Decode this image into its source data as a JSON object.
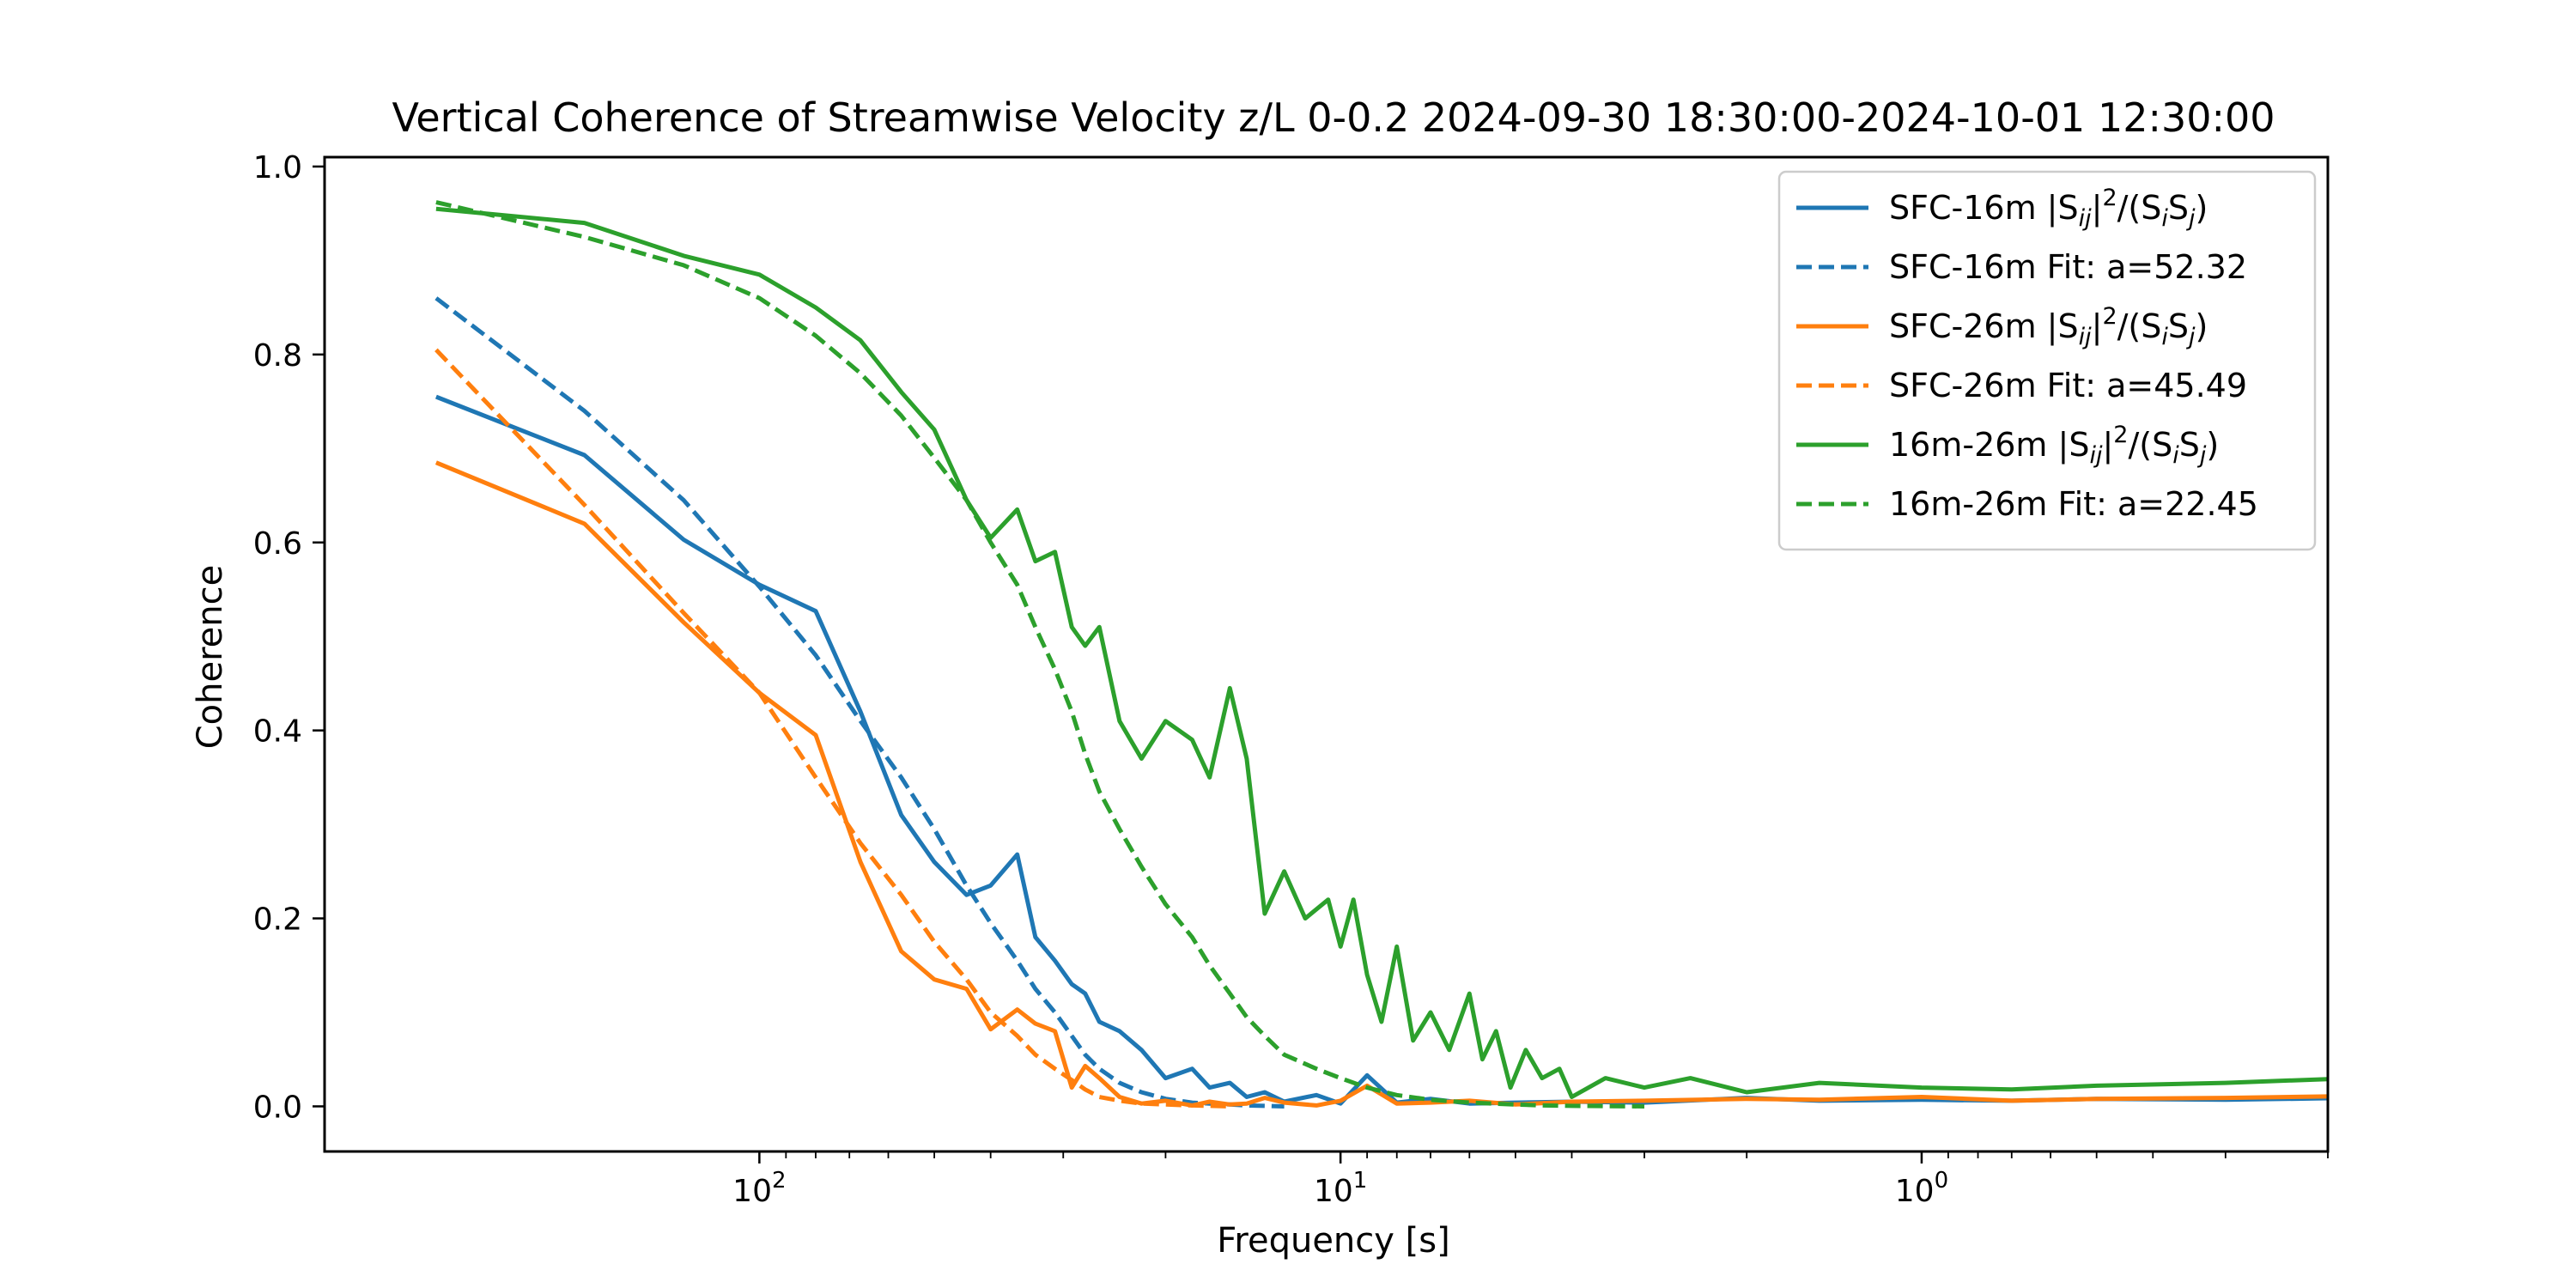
{
  "chart_data": {
    "type": "line",
    "title": "Vertical Coherence of Streamwise Velocity z/L 0-0.2 2024-09-30 18:30:00-2024-10-01 12:30:00",
    "xlabel": "Frequency [s]",
    "ylabel": "Coherence",
    "x_scale": "log",
    "x_reversed": true,
    "xlim": [
      560,
      0.2
    ],
    "ylim": [
      -0.048,
      1.01
    ],
    "x_ticks": [
      {
        "value": 100,
        "label": "10",
        "sup": "2"
      },
      {
        "value": 10,
        "label": "10",
        "sup": "1"
      },
      {
        "value": 1,
        "label": "10",
        "sup": "0"
      }
    ],
    "y_ticks": [
      {
        "value": 0.0,
        "label": "0.0"
      },
      {
        "value": 0.2,
        "label": "0.2"
      },
      {
        "value": 0.4,
        "label": "0.4"
      },
      {
        "value": 0.6,
        "label": "0.6"
      },
      {
        "value": 0.8,
        "label": "0.8"
      },
      {
        "value": 1.0,
        "label": "1.0"
      }
    ],
    "legend_position": "top-right",
    "series": [
      {
        "name": "SFC-16m |Sij|2/(SiSj)",
        "legend": {
          "pre": "SFC-16m |S",
          "sub1": "ij",
          "mid1": "|",
          "sup": "2",
          "mid2": "/(S",
          "sub2": "i",
          "mid3": "S",
          "sub3": "j",
          "post": ")"
        },
        "color": "#1f77b4",
        "style": "solid",
        "x": [
          360,
          200,
          135,
          100,
          80,
          67,
          57,
          50,
          44,
          40,
          36,
          33.5,
          31,
          29,
          27.5,
          26,
          24,
          22,
          20,
          18,
          16.8,
          15.5,
          14.5,
          13.5,
          12.5,
          11,
          10,
          9,
          8,
          7,
          6,
          5,
          4,
          3,
          2,
          1.5,
          1,
          0.7,
          0.5,
          0.3,
          0.18
        ],
        "y": [
          0.755,
          0.693,
          0.603,
          0.555,
          0.527,
          0.42,
          0.31,
          0.26,
          0.225,
          0.235,
          0.268,
          0.18,
          0.155,
          0.13,
          0.12,
          0.09,
          0.08,
          0.06,
          0.03,
          0.04,
          0.02,
          0.025,
          0.01,
          0.015,
          0.005,
          0.012,
          0.003,
          0.033,
          0.004,
          0.008,
          0.003,
          0.004,
          0.005,
          0.004,
          0.009,
          0.006,
          0.007,
          0.006,
          0.008,
          0.007,
          0.009
        ]
      },
      {
        "name": "SFC-16m Fit: a=52.32",
        "color": "#1f77b4",
        "style": "dashed",
        "fit_a": 52.32,
        "x": [
          360,
          200,
          135,
          100,
          80,
          67,
          57,
          50,
          44,
          40,
          36,
          33.5,
          31,
          29,
          27.5,
          26,
          24,
          22,
          20,
          18,
          16.8,
          15.5,
          14.5,
          13.5,
          12.5
        ],
        "y": [
          0.86,
          0.74,
          0.645,
          0.553,
          0.48,
          0.41,
          0.35,
          0.295,
          0.235,
          0.195,
          0.155,
          0.125,
          0.1,
          0.075,
          0.055,
          0.04,
          0.025,
          0.015,
          0.008,
          0.004,
          0.003,
          0.002,
          0.001,
          0.0005,
          0.0
        ]
      },
      {
        "name": "SFC-26m |Sij|2/(SiSj)",
        "legend": {
          "pre": "SFC-26m |S",
          "sub1": "ij",
          "mid1": "|",
          "sup": "2",
          "mid2": "/(S",
          "sub2": "i",
          "mid3": "S",
          "sub3": "j",
          "post": ")"
        },
        "color": "#ff7f0e",
        "style": "solid",
        "x": [
          360,
          200,
          135,
          100,
          80,
          67,
          57,
          50,
          44,
          40,
          36,
          33.5,
          31,
          29,
          27.5,
          26,
          24,
          22,
          20,
          18,
          16.8,
          15.5,
          14.5,
          13.5,
          12.5,
          11,
          10,
          9,
          8,
          7,
          6,
          5,
          4,
          3,
          2,
          1.5,
          1,
          0.7,
          0.5,
          0.3,
          0.18
        ],
        "y": [
          0.685,
          0.62,
          0.515,
          0.44,
          0.395,
          0.26,
          0.165,
          0.135,
          0.125,
          0.082,
          0.103,
          0.088,
          0.08,
          0.02,
          0.043,
          0.03,
          0.01,
          0.003,
          0.006,
          0.001,
          0.005,
          0.002,
          0.003,
          0.009,
          0.004,
          0.001,
          0.006,
          0.022,
          0.003,
          0.004,
          0.006,
          0.002,
          0.005,
          0.006,
          0.008,
          0.007,
          0.01,
          0.006,
          0.008,
          0.009,
          0.011
        ]
      },
      {
        "name": "SFC-26m Fit: a=45.49",
        "color": "#ff7f0e",
        "style": "dashed",
        "fit_a": 45.49,
        "x": [
          360,
          200,
          135,
          100,
          80,
          67,
          57,
          50,
          44,
          40,
          36,
          33.5,
          31,
          29,
          27.5,
          26,
          24,
          22,
          20,
          18,
          16.8,
          15.5
        ],
        "y": [
          0.805,
          0.64,
          0.525,
          0.44,
          0.35,
          0.28,
          0.225,
          0.175,
          0.135,
          0.1,
          0.075,
          0.055,
          0.04,
          0.028,
          0.018,
          0.01,
          0.006,
          0.003,
          0.002,
          0.001,
          0.0005,
          0.0
        ]
      },
      {
        "name": "16m-26m |Sij|2/(SiSj)",
        "legend": {
          "pre": "16m-26m |S",
          "sub1": "ij",
          "mid1": "|",
          "sup": "2",
          "mid2": "/(S",
          "sub2": "i",
          "mid3": "S",
          "sub3": "j",
          "post": ")"
        },
        "color": "#2ca02c",
        "style": "solid",
        "x": [
          360,
          200,
          135,
          100,
          80,
          67,
          57,
          50,
          44,
          40,
          36,
          33.5,
          31,
          29,
          27.5,
          26,
          24,
          22,
          20,
          18,
          16.8,
          15.5,
          14.5,
          13.5,
          12.5,
          11.5,
          10.5,
          10,
          9.5,
          9,
          8.5,
          8,
          7.5,
          7,
          6.5,
          6,
          5.7,
          5.4,
          5.1,
          4.8,
          4.5,
          4.2,
          4,
          3.5,
          3,
          2.5,
          2,
          1.5,
          1,
          0.7,
          0.5,
          0.3,
          0.18
        ],
        "y": [
          0.955,
          0.94,
          0.905,
          0.885,
          0.85,
          0.815,
          0.76,
          0.72,
          0.645,
          0.605,
          0.635,
          0.58,
          0.59,
          0.51,
          0.49,
          0.51,
          0.41,
          0.37,
          0.41,
          0.39,
          0.35,
          0.445,
          0.37,
          0.205,
          0.25,
          0.2,
          0.22,
          0.17,
          0.22,
          0.14,
          0.09,
          0.17,
          0.07,
          0.1,
          0.06,
          0.12,
          0.05,
          0.08,
          0.02,
          0.06,
          0.03,
          0.04,
          0.01,
          0.03,
          0.02,
          0.03,
          0.015,
          0.025,
          0.02,
          0.018,
          0.022,
          0.025,
          0.03
        ]
      },
      {
        "name": "16m-26m Fit: a=22.45",
        "color": "#2ca02c",
        "style": "dashed",
        "fit_a": 22.45,
        "x": [
          360,
          200,
          135,
          100,
          80,
          67,
          57,
          50,
          44,
          40,
          36,
          33.5,
          31,
          29,
          27.5,
          26,
          24,
          22,
          20,
          18,
          16.8,
          15.5,
          14.5,
          13.5,
          12.5,
          11,
          10,
          9,
          8,
          7,
          6,
          5,
          4.5,
          4,
          3.5,
          3
        ],
        "y": [
          0.962,
          0.925,
          0.895,
          0.86,
          0.82,
          0.78,
          0.735,
          0.69,
          0.645,
          0.6,
          0.555,
          0.51,
          0.465,
          0.42,
          0.375,
          0.335,
          0.295,
          0.255,
          0.215,
          0.18,
          0.15,
          0.12,
          0.095,
          0.075,
          0.055,
          0.04,
          0.03,
          0.02,
          0.012,
          0.007,
          0.004,
          0.002,
          0.001,
          0.0005,
          0.0002,
          0.0
        ]
      }
    ]
  }
}
